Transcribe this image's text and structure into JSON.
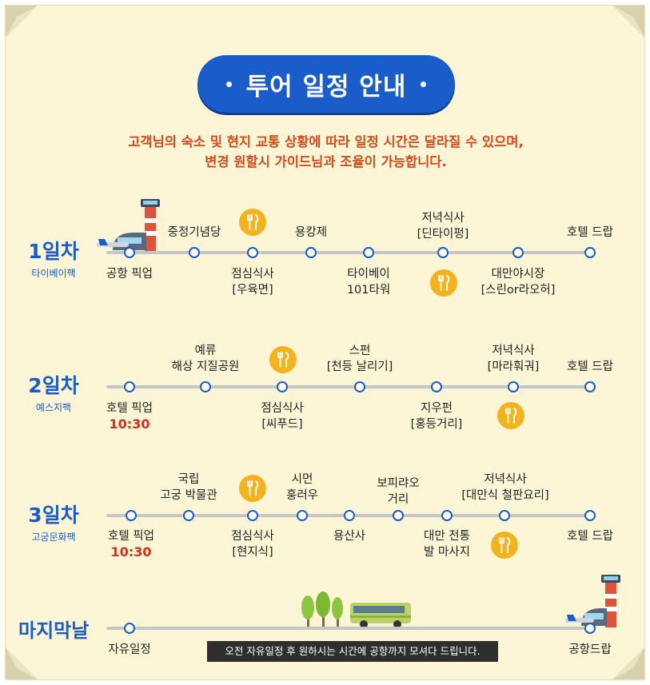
{
  "title": "투어 일정 안내",
  "notice": [
    "고객님의 숙소 및 현지 교통 상황에 따라 일정 시간은 달라질 수 있으며,",
    "변경 원할시 가이드님과 조율이 가능합니다."
  ],
  "colors": {
    "accent": "#1a5cc9",
    "notice": "#d64a1c",
    "time": "#d62d1c",
    "meal": "#f4b31d",
    "track": "#c6c6c6"
  },
  "days": [
    {
      "num": "1일차",
      "sub": "타이베이팩",
      "stops_above": [
        "중정기념당",
        "용캉제",
        "저녁식사",
        "[딘타이펑]",
        "호텔 드랍"
      ],
      "stops_below": [
        "공항 픽업",
        "점심식사",
        "[우육면]",
        "타이베이",
        "101타워",
        "대만야시장",
        "[스린or라오허]"
      ]
    },
    {
      "num": "2일차",
      "sub": "예스지팩",
      "stops_above": [
        "예류",
        "해상 지질공원",
        "스펀",
        "[천등 날리기]",
        "저녁식사",
        "[마라훠궈]",
        "호텔 드랍"
      ],
      "stops_below": [
        "호텔 픽업",
        "10:30",
        "점심식사",
        "[씨푸드]",
        "지우펀",
        "[홍등거리]"
      ]
    },
    {
      "num": "3일차",
      "sub": "고궁문화팩",
      "stops_above": [
        "국립",
        "고궁 박물관",
        "시먼",
        "훙러우",
        "보피랴오",
        "거리",
        "저녁식사",
        "[대만식 철판요리]",
        "호텔 드랍"
      ],
      "stops_below": [
        "호텔 픽업",
        "10:30",
        "점심식사",
        "[현지식]",
        "용산사",
        "대만 전통",
        "발 마사지"
      ]
    }
  ],
  "last_day": {
    "title": "마지막날",
    "start": "자유일정",
    "end": "공항드랍",
    "note": "오전 자유일정 후 원하시는 시간에 공항까지 모셔다 드립니다."
  }
}
